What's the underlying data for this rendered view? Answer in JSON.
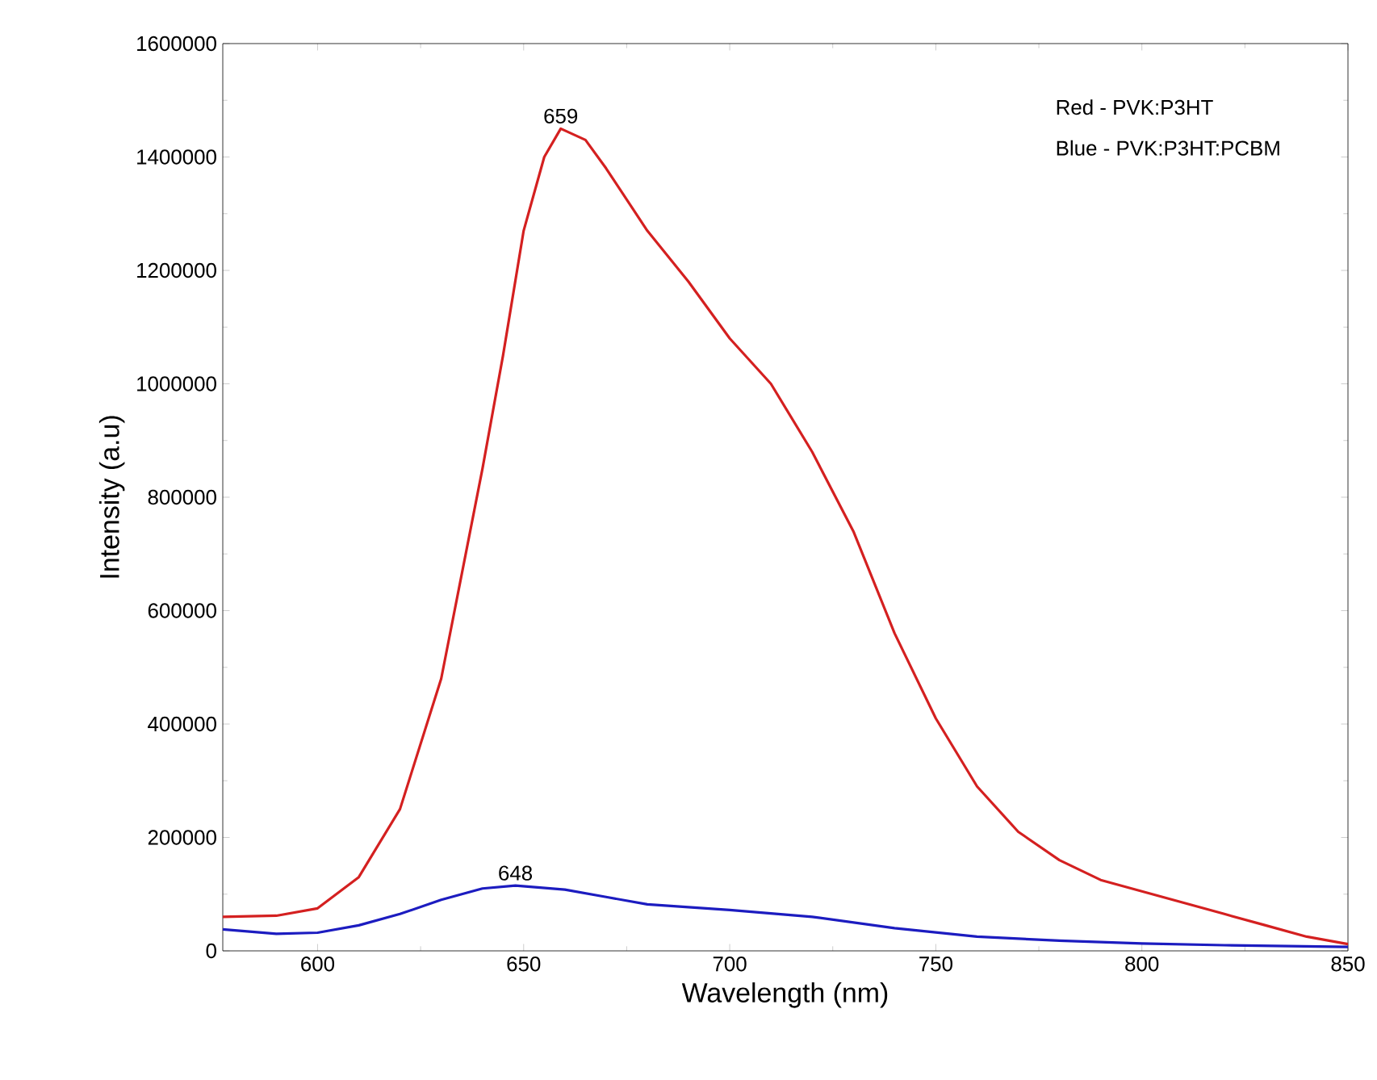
{
  "chart_data": {
    "type": "line",
    "xlabel": "Wavelength (nm)",
    "ylabel": "Intensity (a.u)",
    "xlim": [
      577,
      850
    ],
    "ylim": [
      0,
      1600000
    ],
    "xticks": [
      600,
      650,
      700,
      750,
      800,
      850
    ],
    "yticks": [
      0,
      200000,
      400000,
      600000,
      800000,
      1000000,
      1200000,
      1400000,
      1600000
    ],
    "series": [
      {
        "color": "#d42020",
        "x": [
          577,
          590,
          600,
          610,
          620,
          630,
          640,
          645,
          650,
          655,
          659,
          665,
          670,
          680,
          690,
          700,
          710,
          720,
          730,
          740,
          750,
          760,
          770,
          780,
          790,
          800,
          810,
          820,
          830,
          840,
          850
        ],
        "values": [
          60000,
          62000,
          75000,
          130000,
          250000,
          480000,
          850000,
          1050000,
          1270000,
          1400000,
          1450000,
          1430000,
          1380000,
          1270000,
          1180000,
          1080000,
          1000000,
          880000,
          740000,
          560000,
          410000,
          290000,
          210000,
          160000,
          125000,
          105000,
          85000,
          65000,
          45000,
          25000,
          12000
        ]
      },
      {
        "color": "#1c1cc0",
        "x": [
          577,
          590,
          600,
          610,
          620,
          630,
          640,
          648,
          660,
          670,
          680,
          700,
          720,
          740,
          760,
          780,
          800,
          820,
          850
        ],
        "values": [
          38000,
          30000,
          32000,
          45000,
          65000,
          90000,
          110000,
          115000,
          108000,
          95000,
          82000,
          72000,
          60000,
          40000,
          25000,
          18000,
          13000,
          10000,
          7000
        ]
      }
    ],
    "annotations": [
      {
        "text": "659",
        "x": 659,
        "y": 1450000
      },
      {
        "text": "648",
        "x": 648,
        "y": 115000
      },
      "Red - PVK:P3HT",
      "Blue - PVK:P3HT:PCBM"
    ]
  }
}
